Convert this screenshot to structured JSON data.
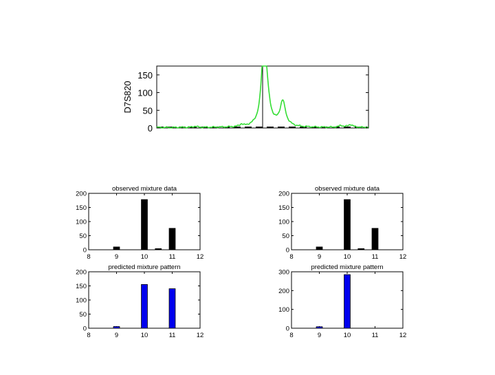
{
  "colors": {
    "trace": "#33dd33",
    "observed": "#000000",
    "predicted": "#0000ee",
    "axis": "#000000"
  },
  "chart_data": [
    {
      "id": "trace",
      "type": "line",
      "title": "",
      "xlabel": "",
      "ylabel": "D7S820",
      "ylim": [
        0,
        175
      ],
      "yticks": [
        0,
        50,
        100,
        150
      ],
      "ytick_labels": [
        "0",
        "50",
        "100",
        "150"
      ],
      "xlim": [
        0,
        100
      ],
      "peaks": [
        {
          "x": 50.5,
          "h": 175,
          "w": 1.3
        },
        {
          "x": 51.6,
          "h": 95,
          "w": 1.8
        },
        {
          "x": 59.5,
          "h": 70,
          "w": 1.6
        },
        {
          "x": 18,
          "h": 3,
          "w": 1.2
        },
        {
          "x": 40,
          "h": 6,
          "w": 0.8
        },
        {
          "x": 87,
          "h": 5,
          "w": 1.2
        },
        {
          "x": 91.5,
          "h": 8,
          "w": 1.3
        }
      ],
      "marker_x": 50
    },
    {
      "id": "obs-left",
      "type": "bar",
      "title": "observed mixture data",
      "xlabel": "",
      "ylabel": "",
      "xlim": [
        8,
        12
      ],
      "ylim": [
        0,
        200
      ],
      "xticks": [
        8,
        9,
        10,
        11,
        12
      ],
      "yticks": [
        0,
        50,
        100,
        150,
        200
      ],
      "x": [
        9,
        10,
        10.5,
        11
      ],
      "values": [
        10,
        178,
        4,
        76
      ],
      "bar_width": 0.22
    },
    {
      "id": "pred-left",
      "type": "bar",
      "title": "predicted mixture pattern",
      "xlabel": "",
      "ylabel": "",
      "xlim": [
        8,
        12
      ],
      "ylim": [
        0,
        200
      ],
      "xticks": [
        8,
        9,
        10,
        11,
        12
      ],
      "yticks": [
        0,
        50,
        100,
        150,
        200
      ],
      "x": [
        9,
        10,
        11
      ],
      "values": [
        6,
        155,
        140
      ],
      "bar_width": 0.22
    },
    {
      "id": "obs-right",
      "type": "bar",
      "title": "observed mixture data",
      "xlabel": "",
      "ylabel": "",
      "xlim": [
        8,
        12
      ],
      "ylim": [
        0,
        200
      ],
      "xticks": [
        8,
        9,
        10,
        11,
        12
      ],
      "yticks": [
        0,
        50,
        100,
        150,
        200
      ],
      "x": [
        9,
        10,
        10.5,
        11
      ],
      "values": [
        10,
        178,
        4,
        76
      ],
      "bar_width": 0.22
    },
    {
      "id": "pred-right",
      "type": "bar",
      "title": "predicted mixture pattern",
      "xlabel": "",
      "ylabel": "",
      "xlim": [
        8,
        12
      ],
      "ylim": [
        0,
        300
      ],
      "xticks": [
        8,
        9,
        10,
        11,
        12
      ],
      "yticks": [
        0,
        100,
        200,
        300
      ],
      "x": [
        9,
        10
      ],
      "values": [
        8,
        285
      ],
      "bar_width": 0.22
    }
  ]
}
